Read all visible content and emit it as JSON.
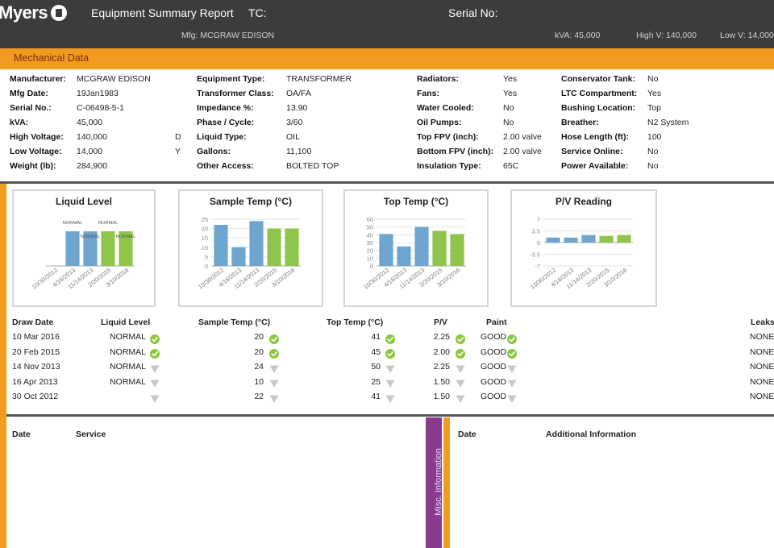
{
  "header": {
    "logo": "Myers",
    "report_title": "Equipment Summary Report",
    "tc_label": "TC:",
    "serial_label": "Serial No:",
    "mfg": "Mfg:  MCGRAW EDISON",
    "kva": "kVA:  45,000",
    "high_v": "High V:  140,000",
    "low_v": "Low V:  14,000"
  },
  "mechanical": {
    "title": "Mechanical Data",
    "col1": [
      {
        "label": "Manufacturer:",
        "value": "MCGRAW EDISON",
        "extra": ""
      },
      {
        "label": "Mfg Date:",
        "value": "19Jan1983",
        "extra": ""
      },
      {
        "label": "Serial No.:",
        "value": "C-06498-5-1",
        "extra": ""
      },
      {
        "label": "kVA:",
        "value": "45,000",
        "extra": ""
      },
      {
        "label": "High Voltage:",
        "value": "140,000",
        "extra": "D"
      },
      {
        "label": "Low Voltage:",
        "value": "14,000",
        "extra": "Y"
      },
      {
        "label": "Weight (lb):",
        "value": "284,900",
        "extra": ""
      }
    ],
    "col2": [
      {
        "label": "Equipment Type:",
        "value": "TRANSFORMER"
      },
      {
        "label": "Transformer Class:",
        "value": "OA/FA"
      },
      {
        "label": "Impedance %:",
        "value": "13.90"
      },
      {
        "label": "Phase / Cycle:",
        "value": "3/60"
      },
      {
        "label": "Liquid Type:",
        "value": "OIL"
      },
      {
        "label": "Gallons:",
        "value": "11,100"
      },
      {
        "label": "Other Access:",
        "value": "BOLTED TOP"
      }
    ],
    "col3": [
      {
        "label": "Radiators:",
        "value": "Yes"
      },
      {
        "label": "Fans:",
        "value": "Yes"
      },
      {
        "label": "Water Cooled:",
        "value": "No"
      },
      {
        "label": "Oil Pumps:",
        "value": "No"
      },
      {
        "label": "Top FPV (inch):",
        "value": "2.00 valve"
      },
      {
        "label": "Bottom FPV (inch):",
        "value": "2.00 valve"
      },
      {
        "label": "Insulation Type:",
        "value": "65C"
      }
    ],
    "col4": [
      {
        "label": "Conservator Tank:",
        "value": "No"
      },
      {
        "label": "LTC Compartment:",
        "value": "Yes"
      },
      {
        "label": "Bushing Location:",
        "value": "Top"
      },
      {
        "label": "Breather:",
        "value": "N2 System"
      },
      {
        "label": "Hose Length (ft):",
        "value": "100"
      },
      {
        "label": "Service Online:",
        "value": "No"
      },
      {
        "label": "Power Available:",
        "value": "No"
      }
    ]
  },
  "colors": {
    "orange": "#f39b1f",
    "dark": "#3c3c3c",
    "bar_blue": "#6ea5cf",
    "bar_green": "#8fc54b",
    "check_green": "#8dc63f",
    "triangle_grey": "#c8c8c8",
    "misc_purple": "#8a3b8f"
  },
  "chart_data": [
    {
      "type": "bar",
      "title": "Liquid Level",
      "categories": [
        "10/30/2012",
        "4/16/2013",
        "11/14/2013",
        "2/20/2015",
        "3/10/2016"
      ],
      "values": [
        null,
        1,
        1,
        1,
        1
      ],
      "data_labels": [
        "",
        "NORMAL",
        "NORMAL",
        "NORMAL",
        "NORMAL"
      ],
      "ylim": [
        0,
        1.35
      ],
      "yticks": []
    },
    {
      "type": "bar",
      "title": "Sample Temp (°C)",
      "categories": [
        "10/30/2012",
        "4/16/2013",
        "11/14/2013",
        "2/20/2015",
        "3/10/2016"
      ],
      "values": [
        22,
        10,
        24,
        20,
        20
      ],
      "ylim": [
        0,
        25
      ],
      "yticks": [
        "0",
        "5",
        "10",
        "15",
        "20",
        "25"
      ]
    },
    {
      "type": "bar",
      "title": "Top Temp (°C)",
      "categories": [
        "10/30/2012",
        "4/16/2013",
        "11/14/2013",
        "2/20/2015",
        "3/10/2016"
      ],
      "values": [
        41,
        25,
        50,
        45,
        41
      ],
      "ylim": [
        0,
        60
      ],
      "yticks": [
        "0",
        "10",
        "20",
        "30",
        "40",
        "50",
        "60"
      ]
    },
    {
      "type": "bar",
      "title": "P/V Reading",
      "categories": [
        "10/30/2012",
        "4/16/2013",
        "11/14/2013",
        "2/20/2015",
        "3/10/2016"
      ],
      "values": [
        1.5,
        1.5,
        2.25,
        2.0,
        2.25
      ],
      "ylim": [
        -7,
        7
      ],
      "yticks": [
        "7",
        "3.5",
        "0",
        "-3.5",
        "-7"
      ]
    }
  ],
  "table": {
    "headers": {
      "draw_date": "Draw Date",
      "liquid_level": "Liquid Level",
      "sample_temp": "Sample Temp (°C)",
      "top_temp": "Top Temp (°C)",
      "pv": "P/V",
      "paint": "Paint",
      "leaks": "Leaks"
    },
    "rows": [
      {
        "date": "10 Mar 2016",
        "liquid": "NORMAL",
        "liquid_icon": "check",
        "sample": "20",
        "sample_icon": "check",
        "top": "41",
        "top_icon": "check",
        "pv": "2.25",
        "pv_icon": "check",
        "paint": "GOOD",
        "paint_icon": "check",
        "leaks": "NONE"
      },
      {
        "date": "20 Feb 2015",
        "liquid": "NORMAL",
        "liquid_icon": "check",
        "sample": "20",
        "sample_icon": "check",
        "top": "45",
        "top_icon": "check",
        "pv": "2.00",
        "pv_icon": "check",
        "paint": "GOOD",
        "paint_icon": "check",
        "leaks": "NONE"
      },
      {
        "date": "14 Nov 2013",
        "liquid": "NORMAL",
        "liquid_icon": "tri",
        "sample": "24",
        "sample_icon": "tri",
        "top": "50",
        "top_icon": "tri",
        "pv": "2.25",
        "pv_icon": "tri",
        "paint": "GOOD",
        "paint_icon": "tri",
        "leaks": "NONE"
      },
      {
        "date": "16 Apr 2013",
        "liquid": "NORMAL",
        "liquid_icon": "tri",
        "sample": "10",
        "sample_icon": "tri",
        "top": "25",
        "top_icon": "tri",
        "pv": "1.50",
        "pv_icon": "tri",
        "paint": "GOOD",
        "paint_icon": "tri",
        "leaks": "NONE"
      },
      {
        "date": "30 Oct 2012",
        "liquid": "",
        "liquid_icon": "tri",
        "sample": "22",
        "sample_icon": "tri",
        "top": "41",
        "top_icon": "tri",
        "pv": "1.50",
        "pv_icon": "tri",
        "paint": "GOOD",
        "paint_icon": "tri",
        "leaks": "NONE"
      }
    ]
  },
  "service": {
    "date_header": "Date",
    "service_header": "Service"
  },
  "misc": {
    "label": "Misc. Information"
  },
  "additional": {
    "date_header": "Date",
    "info_header": "Additional Information"
  }
}
